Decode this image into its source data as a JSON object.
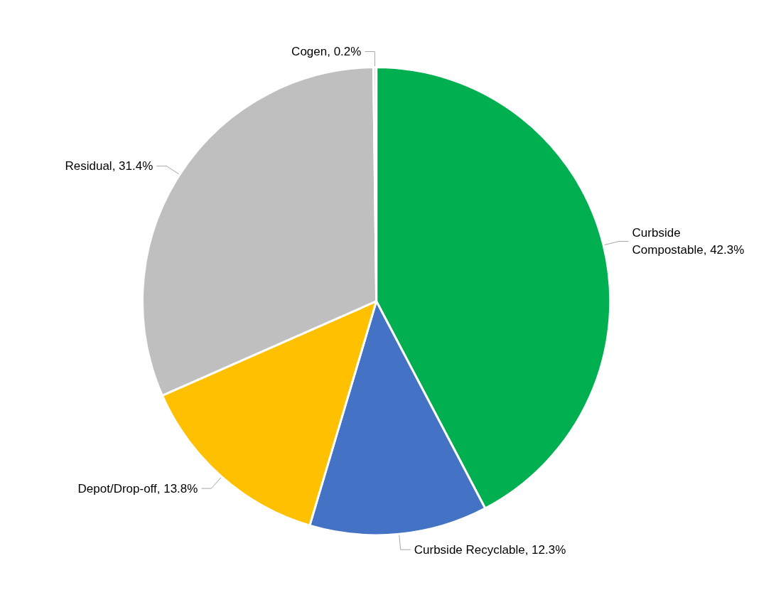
{
  "chart_data": {
    "type": "pie",
    "categories": [
      "Curbside Compostable",
      "Curbside Recyclable",
      "Depot/Drop-off",
      "Residual",
      "Cogen"
    ],
    "values": [
      42.3,
      12.3,
      13.8,
      31.4,
      0.2
    ],
    "colors": [
      "#00b050",
      "#4472c4",
      "#ffc000",
      "#bfbfbf",
      "#d9d9d9"
    ],
    "value_labels": [
      "42.3%",
      "12.3%",
      "13.8%",
      "31.4%",
      "0.2%"
    ],
    "legend": false
  }
}
